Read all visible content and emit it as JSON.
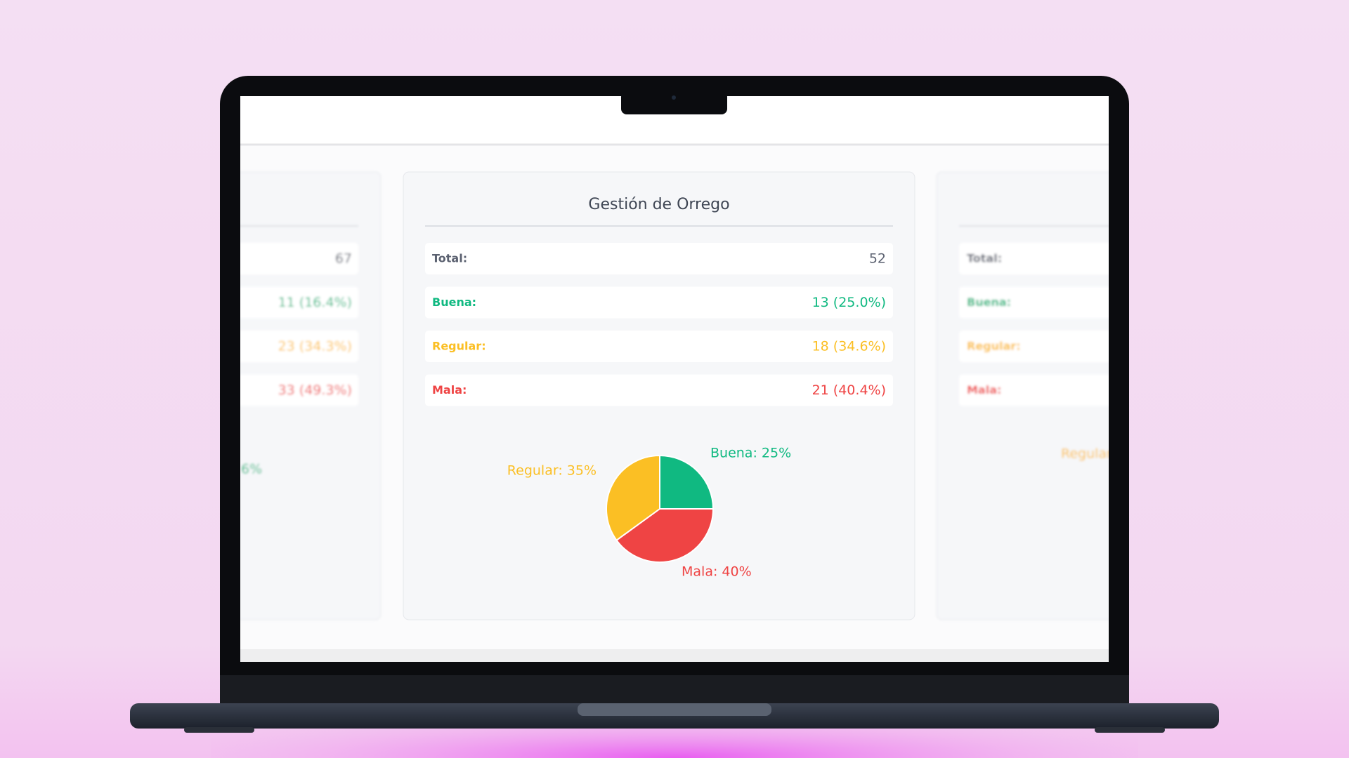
{
  "left_card": {
    "values": [
      "67",
      "11 (16.4%)",
      "23 (34.3%)",
      "33 (49.3%)"
    ],
    "pie_label": "6%"
  },
  "center_card": {
    "title": "Gestión de Orrego",
    "rows": [
      {
        "label": "Total:",
        "value": "52"
      },
      {
        "label": "Buena:",
        "value": "13 (25.0%)"
      },
      {
        "label": "Regular:",
        "value": "18 (34.6%)"
      },
      {
        "label": "Mala:",
        "value": "21 (40.4%)"
      }
    ]
  },
  "right_card": {
    "labels": [
      "Total:",
      "Buena:",
      "Regular:",
      "Mala:"
    ],
    "pie_label": "Regular"
  },
  "chart_data": {
    "type": "pie",
    "categories": [
      "Buena",
      "Mala",
      "Regular"
    ],
    "values": [
      25,
      40,
      35
    ],
    "value_labels": [
      "Buena: 25%",
      "Mala: 40%",
      "Regular: 35%"
    ],
    "colors": [
      "#10b981",
      "#ef4444",
      "#fbbf24"
    ]
  }
}
